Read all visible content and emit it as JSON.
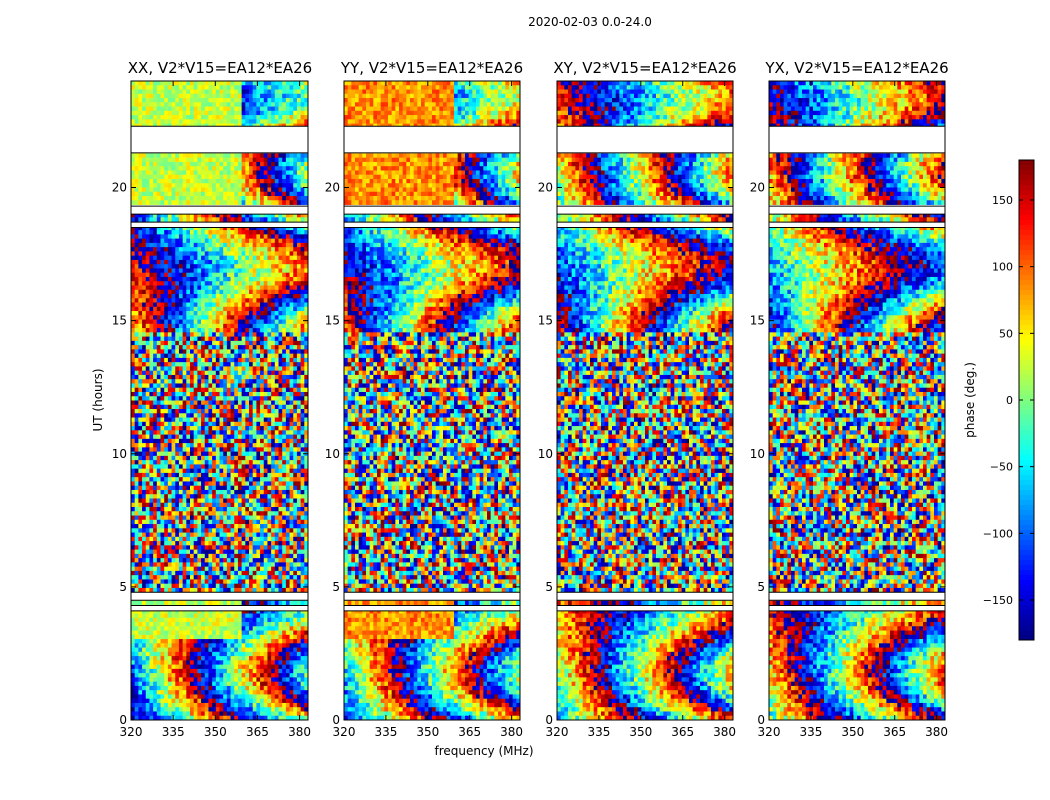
{
  "chart_data": {
    "type": "heatmap",
    "suptitle": "2020-02-03 0.0-24.0",
    "xlabel": "frequency (MHz)",
    "ylabel": "UT (hours)",
    "xlim": [
      320,
      383
    ],
    "ylim": [
      0,
      24
    ],
    "x_ticks": [
      320,
      335,
      350,
      365,
      380
    ],
    "y_ticks": [
      0,
      5,
      10,
      15,
      20
    ],
    "colormap": "jet",
    "colorbar": {
      "label": "phase (deg.)",
      "range": [
        -180,
        180
      ],
      "ticks": [
        -150,
        -100,
        -50,
        0,
        50,
        100,
        150
      ],
      "tick_labels": [
        "−150",
        "−100",
        "−50",
        "0",
        "50",
        "100",
        "150"
      ]
    },
    "panels": [
      {
        "title": "XX, V2*V15=EA12*EA26",
        "kind": "parallel",
        "base_phase": 25
      },
      {
        "title": "YY, V2*V15=EA12*EA26",
        "kind": "parallel",
        "base_phase": 85
      },
      {
        "title": "XY, V2*V15=EA12*EA26",
        "kind": "cross",
        "base_phase": 0
      },
      {
        "title": "YX, V2*V15=EA12*EA26",
        "kind": "cross",
        "base_phase": 0
      }
    ],
    "flagged_ut_ranges": [
      [
        21.3,
        22.3
      ],
      [
        19.0,
        19.3
      ],
      [
        18.5,
        18.7
      ],
      [
        4.1,
        4.3
      ],
      [
        4.5,
        4.8
      ]
    ],
    "rfi_free_start_mhz": 360
  }
}
